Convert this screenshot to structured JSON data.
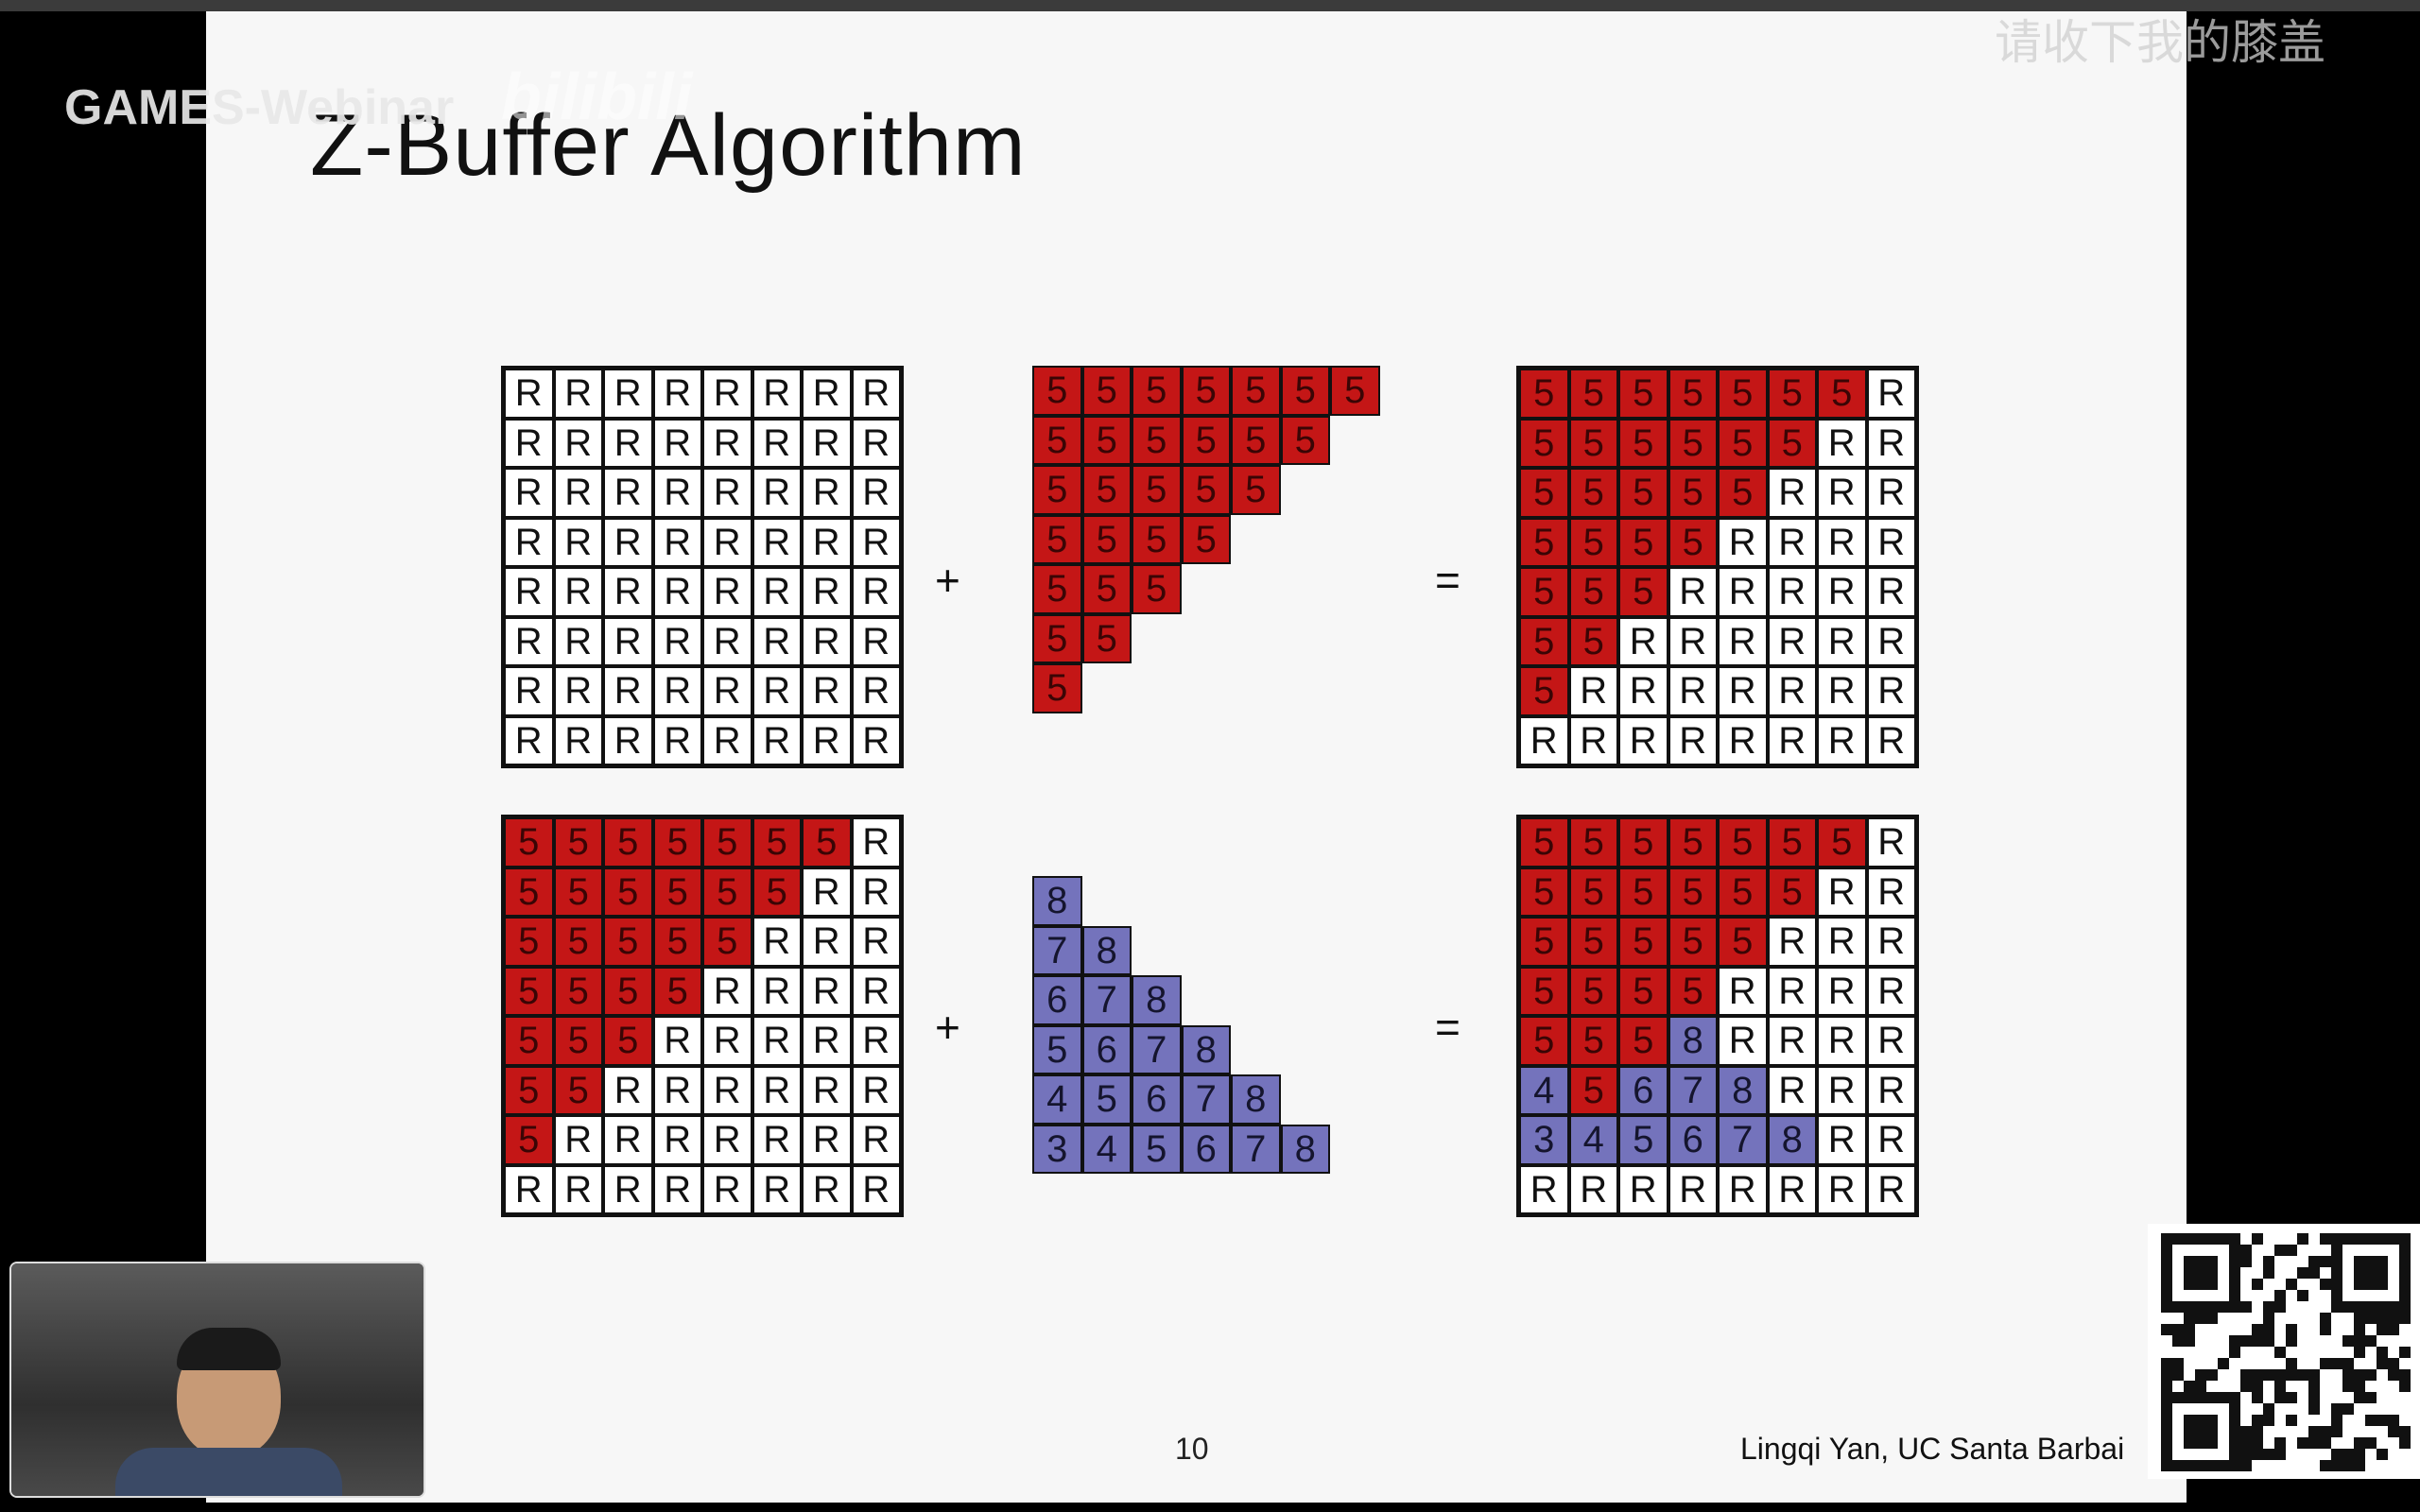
{
  "slide": {
    "title": "Z-Buffer Algorithm",
    "page_number": "10",
    "credit": "Lingqi Yan, UC Santa Barbai"
  },
  "operators": {
    "plus": "+",
    "equals": "="
  },
  "overlays": {
    "channel_label": "GAMES-Webinar",
    "site_logo": "bilibili",
    "danmaku_text": "请收下我的膝盖"
  },
  "colors": {
    "red": "#c41616",
    "blue": "#7473bc",
    "slide_bg": "#f7f7f7"
  },
  "grids": {
    "row1_left": [
      "RRRRRRRR",
      "RRRRRRRR",
      "RRRRRRRR",
      "RRRRRRRR",
      "RRRRRRRR",
      "RRRRRRRR",
      "RRRRRRRR",
      "RRRRRRRR"
    ],
    "row1_mid": [
      "5555555",
      "555555",
      "55555",
      "5555",
      "555",
      "55",
      "5"
    ],
    "row1_right": [
      "5555555R",
      "555555RR",
      "55555RRR",
      "5555RRRR",
      "555RRRRR",
      "55RRRRRR",
      "5RRRRRRR",
      "RRRRRRRR"
    ],
    "row2_left": [
      "5555555R",
      "555555RR",
      "55555RRR",
      "5555RRRR",
      "555RRRRR",
      "55RRRRRR",
      "5RRRRRRR",
      "RRRRRRRR"
    ],
    "row2_mid": [
      "8",
      "78",
      "678",
      "5678",
      "45678",
      "345678"
    ],
    "row2_right": [
      "5555555R",
      "555555RR",
      "55555RRR",
      "5555RRRR",
      "5558RRRR",
      "45678RRR",
      "345678RR",
      "RRRRRRRR"
    ]
  },
  "cell_colors": {
    "row2_right": [
      "rrrrrrrw",
      "rrrrrrww",
      "rrrrrwww",
      "rrrrwwww",
      "rrrbwwww",
      "brbbbwww",
      "bbbbbbww",
      "wwwwwwww"
    ]
  }
}
